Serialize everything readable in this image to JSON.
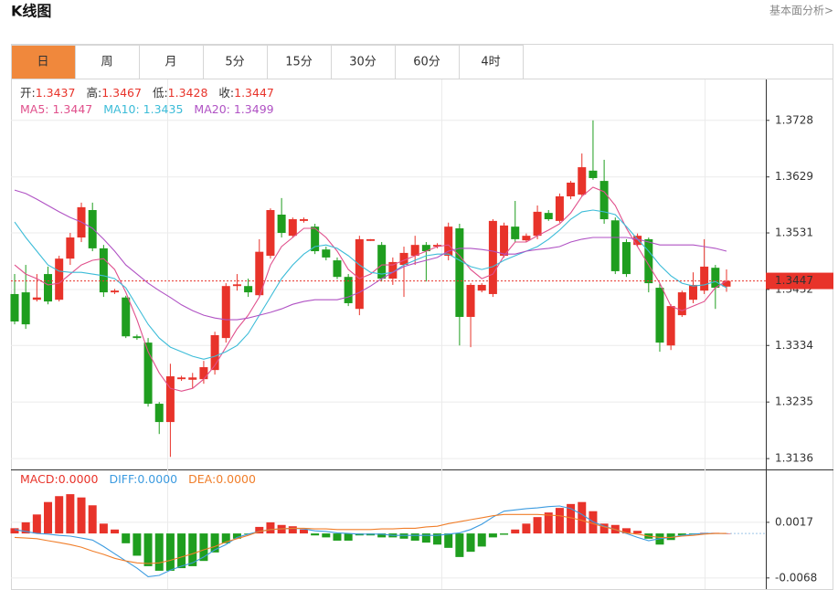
{
  "header": {
    "title": "K线图",
    "link": "基本面分析>"
  },
  "tabs": {
    "labels": [
      "日",
      "周",
      "月",
      "5分",
      "15分",
      "30分",
      "60分",
      "4时"
    ],
    "active": 0,
    "active_color": "#f0883c"
  },
  "chart_data": [
    {
      "type": "candlestick",
      "readout": [
        [
          {
            "label": "开:",
            "value": "1.3437",
            "label_color": "#333333",
            "color": "#e8332a"
          },
          {
            "label": "高:",
            "value": "1.3467",
            "label_color": "#333333",
            "color": "#e8332a"
          },
          {
            "label": "低:",
            "value": "1.3428",
            "label_color": "#333333",
            "color": "#e8332a"
          },
          {
            "label": "收:",
            "value": "1.3447",
            "label_color": "#333333",
            "color": "#e8332a"
          }
        ],
        [
          {
            "label": "MA5: ",
            "value": "1.3447",
            "label_color": "#e0508c",
            "color": "#e0508c"
          },
          {
            "label": "MA10: ",
            "value": "1.3435",
            "label_color": "#3cbcd8",
            "color": "#3cbcd8"
          },
          {
            "label": "MA20: ",
            "value": "1.3499",
            "label_color": "#b052c4",
            "color": "#b052c4"
          }
        ]
      ],
      "up_color": "#e8332a",
      "down_color": "#1f9e1f",
      "candles": [
        [
          1.3424,
          1.3459,
          1.3371,
          1.3376
        ],
        [
          1.3427,
          1.3475,
          1.3363,
          1.3371
        ],
        [
          1.3414,
          1.3459,
          1.3411,
          1.3418
        ],
        [
          1.3459,
          1.3472,
          1.3406,
          1.3411
        ],
        [
          1.3414,
          1.3491,
          1.3411,
          1.3486
        ],
        [
          1.3486,
          1.3531,
          1.3475,
          1.3523
        ],
        [
          1.3523,
          1.3584,
          1.3515,
          1.3576
        ],
        [
          1.3571,
          1.3584,
          1.3499,
          1.3504
        ],
        [
          1.3504,
          1.351,
          1.3419,
          1.3427
        ],
        [
          1.3427,
          1.3433,
          1.3424,
          1.343
        ],
        [
          1.3418,
          1.3421,
          1.3347,
          1.335
        ],
        [
          1.335,
          1.3353,
          1.3344,
          1.3347
        ],
        [
          1.3339,
          1.3347,
          1.3227,
          1.3232
        ],
        [
          1.3232,
          1.3235,
          1.3179,
          1.32
        ],
        [
          1.32,
          1.3302,
          1.3139,
          1.328
        ],
        [
          1.3275,
          1.3281,
          1.3272,
          1.3278
        ],
        [
          1.3274,
          1.3286,
          1.3259,
          1.3278
        ],
        [
          1.3275,
          1.3307,
          1.3267,
          1.3296
        ],
        [
          1.3291,
          1.3358,
          1.3283,
          1.3352
        ],
        [
          1.3347,
          1.3443,
          1.3339,
          1.3438
        ],
        [
          1.3438,
          1.3459,
          1.343,
          1.3441
        ],
        [
          1.3438,
          1.3451,
          1.3419,
          1.3427
        ],
        [
          1.3422,
          1.352,
          1.3419,
          1.3498
        ],
        [
          1.3491,
          1.3574,
          1.3486,
          1.3571
        ],
        [
          1.3563,
          1.3592,
          1.3523,
          1.3531
        ],
        [
          1.3526,
          1.3558,
          1.3523,
          1.3555
        ],
        [
          1.3552,
          1.3558,
          1.3549,
          1.3555
        ],
        [
          1.3542,
          1.3547,
          1.3494,
          1.3499
        ],
        [
          1.3502,
          1.3507,
          1.3483,
          1.3488
        ],
        [
          1.3483,
          1.3488,
          1.345,
          1.3454
        ],
        [
          1.3454,
          1.3459,
          1.3403,
          1.3408
        ],
        [
          1.3398,
          1.3526,
          1.3387,
          1.352
        ],
        [
          1.3517,
          1.352,
          1.3517,
          1.352
        ],
        [
          1.351,
          1.3515,
          1.3446,
          1.3451
        ],
        [
          1.3451,
          1.3488,
          1.344,
          1.348
        ],
        [
          1.3475,
          1.3507,
          1.3419,
          1.3496
        ],
        [
          1.3491,
          1.3526,
          1.3475,
          1.351
        ],
        [
          1.351,
          1.3515,
          1.3446,
          1.3499
        ],
        [
          1.3507,
          1.3513,
          1.3504,
          1.351
        ],
        [
          1.3491,
          1.3549,
          1.3483,
          1.3542
        ],
        [
          1.3539,
          1.3547,
          1.3334,
          1.3384
        ],
        [
          1.3384,
          1.3443,
          1.3331,
          1.344
        ],
        [
          1.343,
          1.3443,
          1.3427,
          1.344
        ],
        [
          1.3424,
          1.3555,
          1.3419,
          1.3552
        ],
        [
          1.3491,
          1.3549,
          1.3488,
          1.3544
        ],
        [
          1.3542,
          1.3587,
          1.3515,
          1.352
        ],
        [
          1.3518,
          1.353,
          1.3515,
          1.3526
        ],
        [
          1.3526,
          1.3579,
          1.352,
          1.3568
        ],
        [
          1.3566,
          1.3571,
          1.3552,
          1.3555
        ],
        [
          1.3552,
          1.36,
          1.3549,
          1.3595
        ],
        [
          1.3595,
          1.3622,
          1.359,
          1.3619
        ],
        [
          1.3598,
          1.367,
          1.3595,
          1.3646
        ],
        [
          1.364,
          1.3728,
          1.3624,
          1.3627
        ],
        [
          1.3622,
          1.3659,
          1.3547,
          1.3555
        ],
        [
          1.3553,
          1.3558,
          1.3459,
          1.3464
        ],
        [
          1.3515,
          1.352,
          1.3454,
          1.3459
        ],
        [
          1.351,
          1.353,
          1.3507,
          1.3526
        ],
        [
          1.352,
          1.3523,
          1.3427,
          1.3443
        ],
        [
          1.3435,
          1.3443,
          1.3323,
          1.3339
        ],
        [
          1.3334,
          1.3406,
          1.3326,
          1.3403
        ],
        [
          1.3387,
          1.343,
          1.3384,
          1.3427
        ],
        [
          1.3414,
          1.3462,
          1.3408,
          1.344
        ],
        [
          1.343,
          1.352,
          1.3424,
          1.3472
        ],
        [
          1.347,
          1.3475,
          1.3398,
          1.3435
        ],
        [
          1.3437,
          1.3467,
          1.3428,
          1.3447
        ]
      ],
      "series": [
        {
          "color": "#e0508c",
          "values": [
            1.3475,
            1.3459,
            1.3451,
            1.344,
            1.3443,
            1.3459,
            1.3475,
            1.3483,
            1.3486,
            1.3467,
            1.3427,
            1.3379,
            1.3323,
            1.3286,
            1.3259,
            1.3254,
            1.3259,
            1.3275,
            1.3299,
            1.3331,
            1.3363,
            1.3387,
            1.3419,
            1.3475,
            1.3507,
            1.3523,
            1.3539,
            1.3539,
            1.3523,
            1.3499,
            1.3467,
            1.3451,
            1.3459,
            1.3475,
            1.3475,
            1.3483,
            1.3491,
            1.3499,
            1.3507,
            1.351,
            1.3491,
            1.3467,
            1.3451,
            1.3459,
            1.3491,
            1.3515,
            1.3515,
            1.3526,
            1.3536,
            1.3547,
            1.3566,
            1.3595,
            1.3611,
            1.3603,
            1.3579,
            1.3539,
            1.3507,
            1.3475,
            1.3443,
            1.3403,
            1.3395,
            1.3403,
            1.3411,
            1.3435,
            1.3447
          ]
        },
        {
          "color": "#3cbcd8",
          "values": [
            1.355,
            1.3523,
            1.3499,
            1.3475,
            1.3464,
            1.3462,
            1.3462,
            1.3459,
            1.3456,
            1.3451,
            1.3435,
            1.3403,
            1.3371,
            1.3347,
            1.3331,
            1.3323,
            1.3315,
            1.331,
            1.3315,
            1.3323,
            1.3334,
            1.3355,
            1.3387,
            1.3419,
            1.3451,
            1.3475,
            1.3494,
            1.3507,
            1.351,
            1.3504,
            1.3491,
            1.3475,
            1.3462,
            1.3459,
            1.3462,
            1.3475,
            1.3483,
            1.3491,
            1.3494,
            1.3494,
            1.3483,
            1.3472,
            1.3467,
            1.3472,
            1.3483,
            1.3491,
            1.3499,
            1.3507,
            1.352,
            1.3536,
            1.3555,
            1.3568,
            1.3571,
            1.3568,
            1.3563,
            1.3542,
            1.352,
            1.3499,
            1.3475,
            1.3456,
            1.3443,
            1.3438,
            1.344,
            1.3446,
            1.3435
          ]
        },
        {
          "color": "#b052c4",
          "values": [
            1.3606,
            1.36,
            1.359,
            1.3579,
            1.3568,
            1.3558,
            1.355,
            1.3539,
            1.352,
            1.3499,
            1.3475,
            1.3459,
            1.3443,
            1.343,
            1.3418,
            1.3405,
            1.3395,
            1.3387,
            1.3382,
            1.3379,
            1.3379,
            1.3382,
            1.3387,
            1.3392,
            1.3398,
            1.3406,
            1.3411,
            1.3414,
            1.3414,
            1.3414,
            1.3419,
            1.3427,
            1.3438,
            1.3451,
            1.3462,
            1.3472,
            1.3478,
            1.3483,
            1.3488,
            1.3499,
            1.3504,
            1.3504,
            1.3502,
            1.3499,
            1.3494,
            1.3494,
            1.3499,
            1.3502,
            1.3504,
            1.3507,
            1.3515,
            1.352,
            1.3523,
            1.3523,
            1.3523,
            1.3523,
            1.352,
            1.3515,
            1.351,
            1.351,
            1.351,
            1.351,
            1.3507,
            1.3504,
            1.3499
          ]
        }
      ],
      "ylim": [
        1.3117,
        1.3798
      ],
      "yticks": [
        1.3728,
        1.3629,
        1.3531,
        1.3432,
        1.3334,
        1.3235,
        1.3136
      ],
      "grid": true,
      "last_price_color": "#e8332a"
    },
    {
      "type": "macd",
      "readout": [
        [
          {
            "label": "MACD:",
            "value": "0.0000",
            "label_color": "#e8332a",
            "color": "#e8332a"
          },
          {
            "label": "DIFF:",
            "value": "0.0000",
            "label_color": "#3c9be0",
            "color": "#3c9be0"
          },
          {
            "label": "DEA:",
            "value": "0.0000",
            "label_color": "#f07e2a",
            "color": "#f07e2a"
          }
        ]
      ],
      "histogram": {
        "up_color": "#e8332a",
        "down_color": "#1f9e1f",
        "values": [
          0.0008,
          0.0017,
          0.0029,
          0.0048,
          0.0057,
          0.006,
          0.0055,
          0.0043,
          0.0015,
          0.0006,
          -0.0015,
          -0.0034,
          -0.005,
          -0.0057,
          -0.0057,
          -0.0053,
          -0.005,
          -0.0042,
          -0.0029,
          -0.0015,
          -0.0008,
          -0.0001,
          0.001,
          0.0017,
          0.0013,
          0.0011,
          0.0006,
          -0.0003,
          -0.0006,
          -0.0011,
          -0.0011,
          -0.0003,
          -0.0003,
          -0.0006,
          -0.0006,
          -0.0008,
          -0.0011,
          -0.0014,
          -0.0017,
          -0.0022,
          -0.0036,
          -0.0028,
          -0.002,
          -0.0006,
          -0.0002,
          0.0006,
          0.0015,
          0.0025,
          0.0032,
          0.0039,
          0.0045,
          0.0048,
          0.0034,
          0.0015,
          0.0013,
          0.0008,
          0.0004,
          -0.0008,
          -0.0017,
          -0.001,
          -0.0003,
          -0.0001,
          0.0001,
          0.0001,
          0.0
        ]
      },
      "series": [
        {
          "color": "#3c9be0",
          "values": [
            0.0006,
            0.0003,
            0.0,
            -0.0001,
            -0.0003,
            -0.0004,
            -0.0007,
            -0.001,
            -0.002,
            -0.0031,
            -0.0042,
            -0.0053,
            -0.0066,
            -0.0064,
            -0.0056,
            -0.005,
            -0.0045,
            -0.0036,
            -0.0025,
            -0.0017,
            -0.0006,
            -0.0001,
            0.0003,
            0.0006,
            0.0007,
            0.0008,
            0.0007,
            0.0004,
            0.0003,
            0.0001,
            0.0,
            -0.0001,
            -0.0001,
            -0.0001,
            -0.0003,
            -0.0003,
            -0.0003,
            -0.0003,
            -0.0003,
            -0.0001,
            0.0001,
            0.0006,
            0.0014,
            0.0025,
            0.0034,
            0.0036,
            0.0038,
            0.0039,
            0.0041,
            0.0042,
            0.0038,
            0.0029,
            0.0018,
            0.0011,
            0.0006,
            0.0,
            -0.0006,
            -0.0011,
            -0.0008,
            -0.0006,
            -0.0003,
            -0.0001,
            0.0,
            0.0,
            0.0
          ]
        },
        {
          "color": "#f07e2a",
          "values": [
            -0.0006,
            -0.0007,
            -0.0008,
            -0.0011,
            -0.0014,
            -0.0017,
            -0.0021,
            -0.0027,
            -0.0032,
            -0.0038,
            -0.0042,
            -0.0045,
            -0.0046,
            -0.0045,
            -0.0041,
            -0.0036,
            -0.0031,
            -0.0025,
            -0.002,
            -0.0013,
            -0.0008,
            -0.0003,
            0.0003,
            0.0006,
            0.0007,
            0.0008,
            0.0008,
            0.0007,
            0.0007,
            0.0006,
            0.0006,
            0.0006,
            0.0006,
            0.0007,
            0.0007,
            0.0008,
            0.0008,
            0.001,
            0.0011,
            0.0015,
            0.0018,
            0.0021,
            0.0024,
            0.0027,
            0.0029,
            0.0029,
            0.0029,
            0.0029,
            0.0028,
            0.0027,
            0.0024,
            0.002,
            0.0015,
            0.001,
            0.0006,
            0.0001,
            -0.0001,
            -0.0004,
            -0.0006,
            -0.0006,
            -0.0004,
            -0.0003,
            -0.0001,
            0.0,
            0.0
          ]
        }
      ],
      "ylim": [
        -0.0085,
        0.0095
      ],
      "yticks": [
        0.0017,
        -0.0068
      ],
      "grid": true
    }
  ]
}
